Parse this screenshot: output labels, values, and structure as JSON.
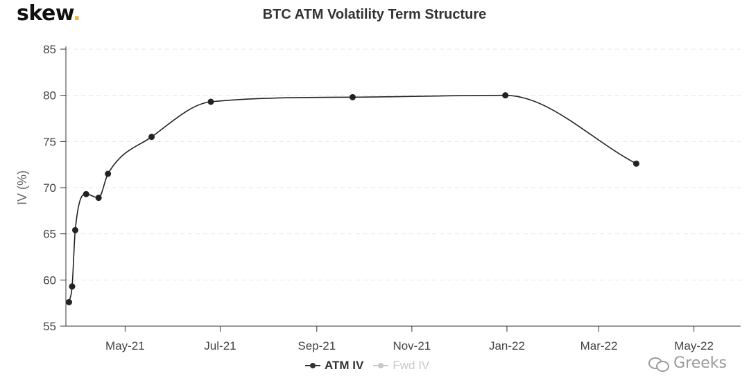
{
  "brand": {
    "name": "skew",
    "dot": "."
  },
  "watermark": {
    "text": "Greeks"
  },
  "colors": {
    "line": "#222222",
    "grid": "#e6e6e6",
    "brand_dot": "#f2b233",
    "inactive": "#c8c8c8"
  },
  "chart_data": {
    "type": "line",
    "title": "BTC ATM Volatility Term Structure",
    "xlabel": "",
    "ylabel": "IV (%)",
    "ylim": [
      55,
      85
    ],
    "xlim": [
      "2021-03-24",
      "2022-05-31"
    ],
    "yticks": [
      55,
      60,
      65,
      70,
      75,
      80,
      85
    ],
    "xticks": [
      {
        "date": "2021-05-01",
        "label": "May-21"
      },
      {
        "date": "2021-07-01",
        "label": "Jul-21"
      },
      {
        "date": "2021-09-01",
        "label": "Sep-21"
      },
      {
        "date": "2021-11-01",
        "label": "Nov-21"
      },
      {
        "date": "2022-01-01",
        "label": "Jan-22"
      },
      {
        "date": "2022-03-01",
        "label": "Mar-22"
      },
      {
        "date": "2022-05-01",
        "label": "May-22"
      }
    ],
    "grid": true,
    "legend": "bottom-center",
    "series": [
      {
        "name": "ATM IV",
        "active": true,
        "points": [
          {
            "x": "2021-03-26",
            "y": 57.6
          },
          {
            "x": "2021-03-28",
            "y": 59.3
          },
          {
            "x": "2021-03-30",
            "y": 65.4
          },
          {
            "x": "2021-04-06",
            "y": 69.3
          },
          {
            "x": "2021-04-14",
            "y": 68.9
          },
          {
            "x": "2021-04-20",
            "y": 71.5
          },
          {
            "x": "2021-05-18",
            "y": 75.5
          },
          {
            "x": "2021-06-25",
            "y": 79.3
          },
          {
            "x": "2021-09-24",
            "y": 79.8
          },
          {
            "x": "2021-12-31",
            "y": 80.0
          },
          {
            "x": "2022-03-25",
            "y": 72.6
          }
        ]
      },
      {
        "name": "Fwd IV",
        "active": false,
        "points": []
      }
    ]
  }
}
